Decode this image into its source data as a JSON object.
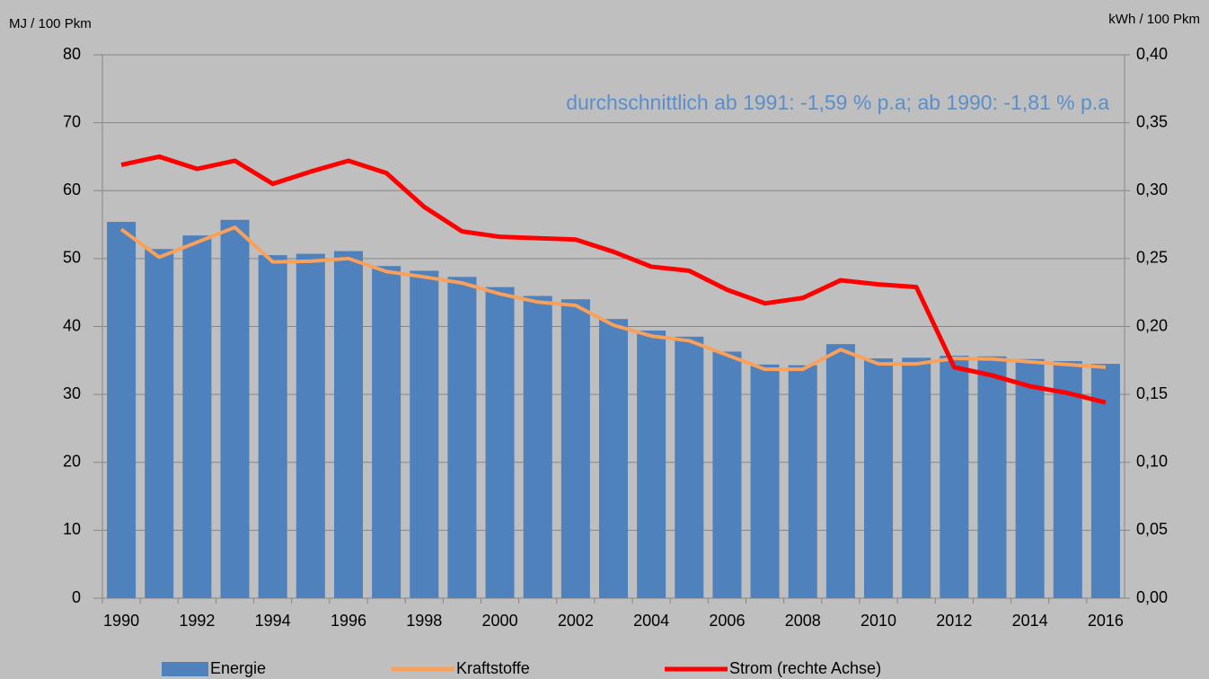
{
  "chart_data": {
    "type": "bar-line",
    "y_label": "MJ / 100 Pkm",
    "y2_label": "kWh / 100 Pkm",
    "annotation": "durchschnittlich ab 1991:  -1,59 % p.a; ab 1990: -1,81 % p.a",
    "categories": [
      "1990",
      null,
      "1992",
      null,
      "1994",
      null,
      "1996",
      null,
      "1998",
      null,
      "2000",
      null,
      "2002",
      null,
      "2004",
      null,
      "2006",
      null,
      "2008",
      null,
      "2010",
      null,
      "2012",
      null,
      "2014",
      null,
      "2016"
    ],
    "series": [
      {
        "name": "Energie",
        "kind": "bar",
        "color": "#4f81bd",
        "values": [
          55.4,
          51.4,
          53.4,
          55.7,
          50.5,
          50.7,
          51.1,
          48.9,
          48.2,
          47.3,
          45.8,
          44.5,
          44.0,
          41.1,
          39.4,
          38.5,
          36.3,
          34.4,
          34.3,
          37.4,
          35.3,
          35.4,
          35.7,
          35.6,
          35.2,
          34.9,
          34.5
        ]
      },
      {
        "name": "Kraftstoffe",
        "kind": "line",
        "color": "#f9a05a",
        "values": [
          54.3,
          50.2,
          52.4,
          54.6,
          49.5,
          49.6,
          50.0,
          48.1,
          47.3,
          46.4,
          44.8,
          43.6,
          43.1,
          40.2,
          38.6,
          37.9,
          35.8,
          33.7,
          33.7,
          36.6,
          34.5,
          34.5,
          35.3,
          35.2,
          34.8,
          34.4,
          34.0
        ]
      },
      {
        "name": "Strom (rechte Achse)",
        "kind": "line",
        "axis": "y2",
        "color": "#ff0000",
        "values": [
          0.319,
          0.325,
          0.316,
          0.322,
          0.305,
          0.314,
          0.322,
          0.313,
          0.288,
          0.27,
          0.266,
          0.265,
          0.264,
          0.255,
          0.244,
          0.241,
          0.227,
          0.217,
          0.221,
          0.234,
          0.231,
          0.229,
          0.17,
          0.164,
          0.156,
          0.151,
          0.144
        ]
      }
    ],
    "ylim": [
      0,
      80
    ],
    "yticks": [
      0,
      10,
      20,
      30,
      40,
      50,
      60,
      70,
      80
    ],
    "y2lim": [
      0,
      0.4
    ],
    "y2ticks": [
      {
        "value": 0,
        "label": "0,00"
      },
      {
        "value": 0.05,
        "label": "0,05"
      },
      {
        "value": 0.1,
        "label": "0,10"
      },
      {
        "value": 0.15,
        "label": "0,15"
      },
      {
        "value": 0.2,
        "label": "0,20"
      },
      {
        "value": 0.25,
        "label": "0,25"
      },
      {
        "value": 0.3,
        "label": "0,30"
      },
      {
        "value": 0.35,
        "label": "0,35"
      },
      {
        "value": 0.4,
        "label": "0,40"
      }
    ],
    "grid": true,
    "legend": "bottom"
  }
}
